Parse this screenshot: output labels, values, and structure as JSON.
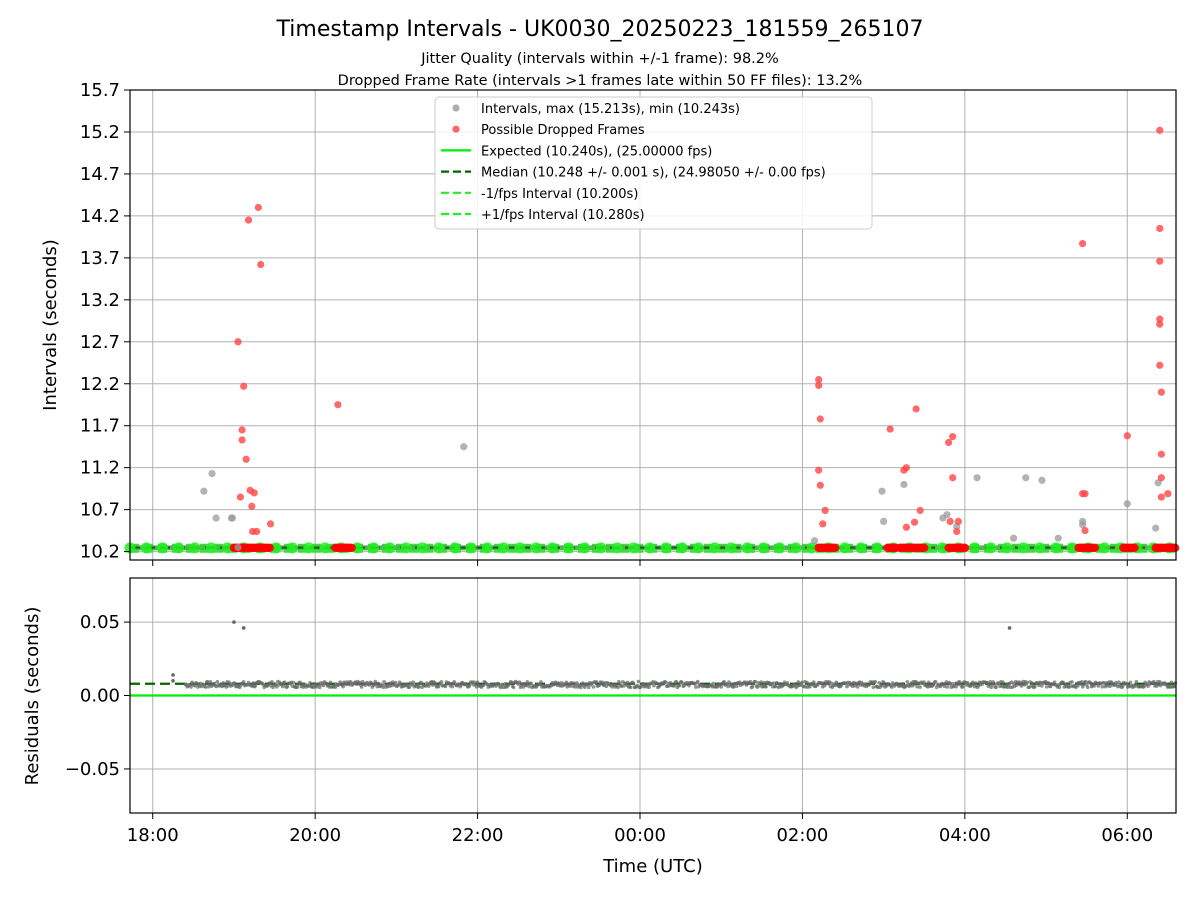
{
  "chart_data": [
    {
      "type": "scatter",
      "panel": "intervals",
      "title": "Timestamp Intervals - UK0030_20250223_181559_265107",
      "subtitle_1": "Jitter Quality (intervals within +/-1 frame): 98.2%",
      "subtitle_2": "Dropped Frame Rate (intervals >1 frames late within 50 FF files): 13.2%",
      "xlabel": "",
      "ylabel": "Intervals (seconds)",
      "x_unit": "hours since 18:00 UTC (continuous, wraps past midnight)",
      "xlim": [
        17.72,
        30.6
      ],
      "ylim": [
        10.1,
        15.7
      ],
      "y_ticks": [
        10.2,
        10.7,
        11.2,
        11.7,
        12.2,
        12.7,
        13.2,
        13.7,
        14.2,
        14.7,
        15.2,
        15.7
      ],
      "y_tick_labels": [
        "10.2",
        "10.7",
        "11.2",
        "11.7",
        "12.2",
        "12.7",
        "13.2",
        "13.7",
        "14.2",
        "14.7",
        "15.2",
        "15.7"
      ],
      "x_ticks": [
        18,
        20,
        22,
        24,
        26,
        28,
        30
      ],
      "grid": true,
      "legend_position": "top-center",
      "legend": [
        {
          "label": "Intervals, max (15.213s), min (10.243s)",
          "kind": "marker",
          "color": "#999999"
        },
        {
          "label": "Possible Dropped Frames",
          "kind": "marker",
          "color": "#ff4444"
        },
        {
          "label": "Expected (10.240s), (25.00000 fps)",
          "kind": "line",
          "style": "solid",
          "color": "#00ee00"
        },
        {
          "label": "Median (10.248 +/- 0.001 s), (24.98050 +/- 0.00 fps)",
          "kind": "line",
          "style": "dashed",
          "color": "#006400"
        },
        {
          "label": "-1/fps Interval (10.200s)",
          "kind": "line",
          "style": "dashed",
          "color": "#22ee22"
        },
        {
          "label": "+1/fps Interval (10.280s)",
          "kind": "line",
          "style": "dashed",
          "color": "#22ee22"
        }
      ],
      "reference_lines": {
        "expected": 10.24,
        "median": 10.248,
        "minus_one_fps": 10.2,
        "plus_one_fps": 10.28
      },
      "baseline_band": {
        "y": 10.245,
        "x_start": 17.72,
        "x_end": 30.6
      },
      "series": [
        {
          "name": "Intervals, max (15.213s), min (10.243s)",
          "color": "#999999",
          "points": [
            [
              18.63,
              10.92
            ],
            [
              18.73,
              11.13
            ],
            [
              18.78,
              10.6
            ],
            [
              18.97,
              10.6
            ],
            [
              18.98,
              10.6
            ],
            [
              19.05,
              10.25
            ],
            [
              21.83,
              11.45
            ],
            [
              26.15,
              10.33
            ],
            [
              26.98,
              10.92
            ],
            [
              27.0,
              10.56
            ],
            [
              27.25,
              11.0
            ],
            [
              27.73,
              10.6
            ],
            [
              27.78,
              10.64
            ],
            [
              27.9,
              10.5
            ],
            [
              28.15,
              11.08
            ],
            [
              28.6,
              10.36
            ],
            [
              28.75,
              11.08
            ],
            [
              28.95,
              11.05
            ],
            [
              29.15,
              10.36
            ],
            [
              29.45,
              10.56
            ],
            [
              29.45,
              10.52
            ],
            [
              30.0,
              10.77
            ],
            [
              30.35,
              10.48
            ],
            [
              30.38,
              11.02
            ]
          ]
        },
        {
          "name": "Possible Dropped Frames",
          "color": "#ff4444",
          "points": [
            [
              19.05,
              12.7
            ],
            [
              19.08,
              10.85
            ],
            [
              19.1,
              11.65
            ],
            [
              19.1,
              11.53
            ],
            [
              19.12,
              12.17
            ],
            [
              19.15,
              11.3
            ],
            [
              19.18,
              14.15
            ],
            [
              19.2,
              10.93
            ],
            [
              19.22,
              10.74
            ],
            [
              19.23,
              10.44
            ],
            [
              19.25,
              10.9
            ],
            [
              19.28,
              10.44
            ],
            [
              19.3,
              14.3
            ],
            [
              19.33,
              13.62
            ],
            [
              19.45,
              10.53
            ],
            [
              20.28,
              11.95
            ],
            [
              26.2,
              12.25
            ],
            [
              26.2,
              12.18
            ],
            [
              26.2,
              11.17
            ],
            [
              26.22,
              10.99
            ],
            [
              26.22,
              11.78
            ],
            [
              26.25,
              10.53
            ],
            [
              26.28,
              10.69
            ],
            [
              27.08,
              11.66
            ],
            [
              27.25,
              11.17
            ],
            [
              27.28,
              11.2
            ],
            [
              27.28,
              10.49
            ],
            [
              27.38,
              10.55
            ],
            [
              27.4,
              11.9
            ],
            [
              27.45,
              10.69
            ],
            [
              27.8,
              11.5
            ],
            [
              27.82,
              10.56
            ],
            [
              27.85,
              11.08
            ],
            [
              27.85,
              11.57
            ],
            [
              27.9,
              10.44
            ],
            [
              27.92,
              10.56
            ],
            [
              29.45,
              13.87
            ],
            [
              29.45,
              10.89
            ],
            [
              29.48,
              10.89
            ],
            [
              29.48,
              10.45
            ],
            [
              30.0,
              11.58
            ],
            [
              30.4,
              15.22
            ],
            [
              30.4,
              14.05
            ],
            [
              30.4,
              13.66
            ],
            [
              30.4,
              12.97
            ],
            [
              30.4,
              12.91
            ],
            [
              30.4,
              12.42
            ],
            [
              30.42,
              12.1
            ],
            [
              30.42,
              11.36
            ],
            [
              30.42,
              11.08
            ],
            [
              30.42,
              10.85
            ],
            [
              30.5,
              10.89
            ]
          ]
        },
        {
          "name": "Possible Dropped Frames (near expected)",
          "color": "#ff0000",
          "clusters": [
            [
              19.0,
              19.45
            ],
            [
              20.25,
              20.45
            ],
            [
              26.2,
              26.4
            ],
            [
              27.05,
              27.15
            ],
            [
              27.2,
              27.5
            ],
            [
              27.8,
              28.0
            ],
            [
              29.4,
              29.6
            ],
            [
              29.95,
              30.1
            ],
            [
              30.35,
              30.6
            ]
          ]
        }
      ]
    },
    {
      "type": "scatter",
      "panel": "residuals",
      "xlabel": "Time (UTC)",
      "ylabel": "Residuals (seconds)",
      "xlim": [
        17.72,
        30.6
      ],
      "ylim": [
        -0.08,
        0.08
      ],
      "y_ticks": [
        0.05,
        0.0,
        -0.05
      ],
      "y_tick_labels": [
        "0.05",
        "0.00",
        "−0.05"
      ],
      "x_ticks": [
        18,
        20,
        22,
        24,
        26,
        28,
        30
      ],
      "x_tick_labels": [
        "18:00",
        "20:00",
        "22:00",
        "00:00",
        "02:00",
        "04:00",
        "06:00"
      ],
      "grid": true,
      "reference_lines": {
        "zero": 0.0,
        "median_residual": 0.008
      },
      "series": [
        {
          "name": "Residuals",
          "color": "#666666",
          "band": {
            "x_start": 18.4,
            "x_end": 30.6,
            "center": 0.0075,
            "spread": 0.004
          },
          "outliers": [
            [
              18.25,
              0.014
            ],
            [
              18.25,
              0.01
            ],
            [
              19.0,
              0.05
            ],
            [
              19.12,
              0.046
            ],
            [
              28.55,
              0.046
            ]
          ]
        }
      ]
    }
  ]
}
